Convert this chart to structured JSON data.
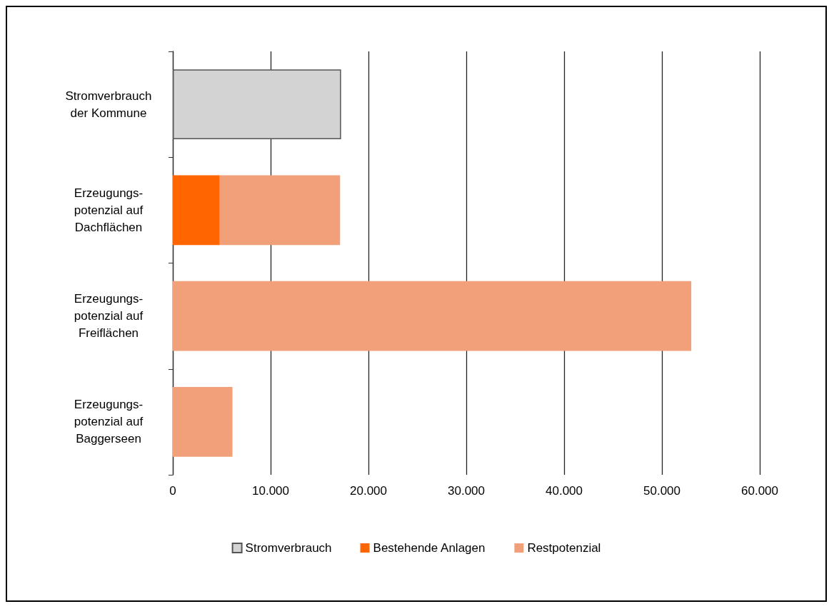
{
  "chart_data": {
    "type": "bar",
    "orientation": "horizontal",
    "stacked": true,
    "categories": [
      "Stromverbrauch\nder Kommune",
      "Erzeugungs-\npotenzial auf\nDachflächen",
      "Erzeugungs-\npotenzial auf\nFreiflächen",
      "Erzeugungs-\npotenzial auf\nBaggerseen"
    ],
    "series": [
      {
        "name": "Stromverbrauch",
        "color": "#d3d3d3",
        "values": [
          17200,
          null,
          null,
          null
        ]
      },
      {
        "name": "Bestehende Anlagen",
        "color": "#ff6600",
        "values": [
          null,
          4800,
          null,
          null
        ]
      },
      {
        "name": "Restpotenzial",
        "color": "#f2a07a",
        "values": [
          null,
          12300,
          53000,
          6100
        ]
      }
    ],
    "xlim": [
      0,
      60000
    ],
    "xticks": [
      0,
      {
        "value": 10000,
        "label": "10.000"
      },
      {
        "value": 20000,
        "label": "20.000"
      },
      {
        "value": 30000,
        "label": "30.000"
      },
      {
        "value": 40000,
        "label": "40.000"
      },
      {
        "value": 50000,
        "label": "50.000"
      },
      {
        "value": 60000,
        "label": "60.000"
      }
    ],
    "grid": "x",
    "legend": "bottom"
  }
}
